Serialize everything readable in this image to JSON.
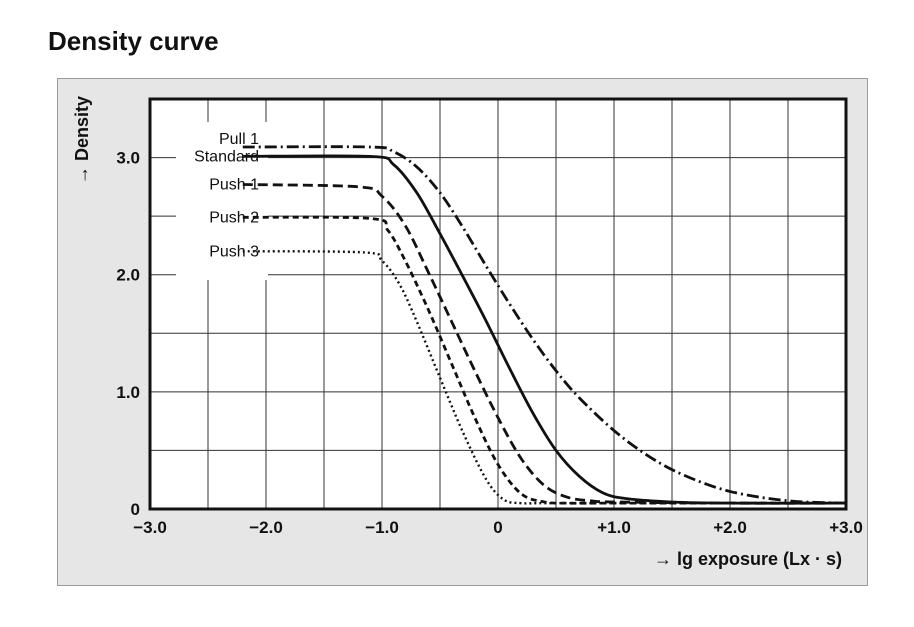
{
  "page": {
    "title": "Density curve"
  },
  "chart_data": {
    "type": "line",
    "xlabel": "→ lg exposure (Lx · s)",
    "ylabel": "→ Density",
    "xlim": [
      -3.0,
      3.0
    ],
    "ylim": [
      0,
      3.5
    ],
    "x_ticks": [
      {
        "value": -3.0,
        "label": "−3.0"
      },
      {
        "value": -2.0,
        "label": "−2.0"
      },
      {
        "value": -1.0,
        "label": "−1.0"
      },
      {
        "value": 0,
        "label": "0"
      },
      {
        "value": 1.0,
        "label": "+1.0"
      },
      {
        "value": 2.0,
        "label": "+2.0"
      },
      {
        "value": 3.0,
        "label": "+3.0"
      }
    ],
    "y_ticks": [
      {
        "value": 0,
        "label": "0"
      },
      {
        "value": 1.0,
        "label": "1.0"
      },
      {
        "value": 2.0,
        "label": "2.0"
      },
      {
        "value": 3.0,
        "label": "3.0"
      }
    ],
    "grid": true,
    "grid_x_step": 0.5,
    "grid_y_step": 0.5,
    "legend_position": "top-left (inline labels)",
    "series": [
      {
        "name": "Pull 1",
        "style": "dash-dot",
        "x": [
          -2.2,
          -1.1,
          -0.9,
          -0.7,
          -0.5,
          -0.3,
          -0.1,
          0.1,
          0.3,
          0.5,
          0.7,
          1.0,
          1.3,
          1.6,
          2.0,
          2.5,
          3.0
        ],
        "y": [
          3.09,
          3.09,
          3.05,
          2.92,
          2.7,
          2.4,
          2.07,
          1.75,
          1.45,
          1.18,
          0.95,
          0.67,
          0.45,
          0.29,
          0.15,
          0.07,
          0.05
        ]
      },
      {
        "name": "Standard",
        "style": "solid",
        "x": [
          -2.2,
          -1.1,
          -0.9,
          -0.7,
          -0.5,
          -0.3,
          -0.1,
          0.1,
          0.3,
          0.5,
          0.7,
          0.9,
          1.1,
          1.5,
          2.0,
          3.0
        ],
        "y": [
          3.01,
          3.01,
          2.94,
          2.7,
          2.35,
          1.98,
          1.6,
          1.2,
          0.82,
          0.5,
          0.28,
          0.14,
          0.09,
          0.06,
          0.05,
          0.05
        ]
      },
      {
        "name": "Push 1",
        "style": "dashed",
        "x": [
          -2.2,
          -1.2,
          -1.0,
          -0.8,
          -0.6,
          -0.4,
          -0.2,
          0,
          0.2,
          0.4,
          0.6,
          0.8,
          1.0,
          2.0,
          3.0
        ],
        "y": [
          2.77,
          2.75,
          2.67,
          2.42,
          2.02,
          1.6,
          1.18,
          0.78,
          0.43,
          0.2,
          0.1,
          0.07,
          0.06,
          0.05,
          0.05
        ]
      },
      {
        "name": "Push 2",
        "style": "short-dash",
        "x": [
          -2.2,
          -1.1,
          -0.95,
          -0.8,
          -0.6,
          -0.4,
          -0.2,
          0,
          0.2,
          0.4,
          0.6,
          1.0,
          3.0
        ],
        "y": [
          2.49,
          2.48,
          2.38,
          2.12,
          1.7,
          1.24,
          0.78,
          0.38,
          0.13,
          0.06,
          0.05,
          0.05,
          0.05
        ]
      },
      {
        "name": "Push 3",
        "style": "dotted",
        "x": [
          -2.2,
          -1.15,
          -1.0,
          -0.85,
          -0.7,
          -0.5,
          -0.3,
          -0.1,
          0.05,
          0.2,
          0.4,
          1.0,
          3.0
        ],
        "y": [
          2.2,
          2.19,
          2.12,
          1.92,
          1.6,
          1.12,
          0.65,
          0.25,
          0.08,
          0.05,
          0.05,
          0.05,
          0.05
        ]
      }
    ]
  }
}
